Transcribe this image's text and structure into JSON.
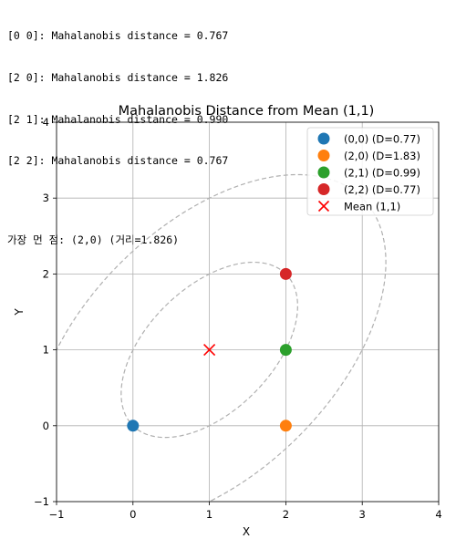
{
  "console": {
    "lines": [
      "[0 0]: Mahalanobis distance = 0.767",
      "[2 0]: Mahalanobis distance = 1.826",
      "[2 1]: Mahalanobis distance = 0.990",
      "[2 2]: Mahalanobis distance = 0.767"
    ],
    "summary": "가장 먼 점: (2,0) (거리=1.826)"
  },
  "chart_data": {
    "type": "scatter",
    "title": "Mahalanobis Distance from Mean (1,1)",
    "xlabel": "X",
    "ylabel": "Y",
    "xlim": [
      -1,
      4
    ],
    "ylim": [
      -1,
      4
    ],
    "xticks": [
      "−1",
      "0",
      "1",
      "2",
      "3",
      "4"
    ],
    "yticks": [
      "−1",
      "0",
      "1",
      "2",
      "3",
      "4"
    ],
    "grid": true,
    "legend_position": "top-right",
    "series": [
      {
        "name": "(0,0) (D=0.77)",
        "x": 0,
        "y": 0,
        "color": "#1f77b4",
        "marker": "circle"
      },
      {
        "name": "(2,0) (D=1.83)",
        "x": 2,
        "y": 0,
        "color": "#ff7f0e",
        "marker": "circle"
      },
      {
        "name": "(2,1) (D=0.99)",
        "x": 2,
        "y": 1,
        "color": "#2ca02c",
        "marker": "circle"
      },
      {
        "name": "(2,2) (D=0.77)",
        "x": 2,
        "y": 2,
        "color": "#d62728",
        "marker": "circle"
      },
      {
        "name": "Mean (1,1)",
        "x": 1,
        "y": 1,
        "color": "#ff0000",
        "marker": "x"
      }
    ],
    "contours": {
      "center": [
        1,
        1
      ],
      "levels": [
        1,
        2
      ],
      "covariance": [
        [
          1.333,
          0.667
        ],
        [
          0.667,
          1.333
        ]
      ],
      "style": "dashed",
      "color": "#b0b0b0"
    }
  }
}
